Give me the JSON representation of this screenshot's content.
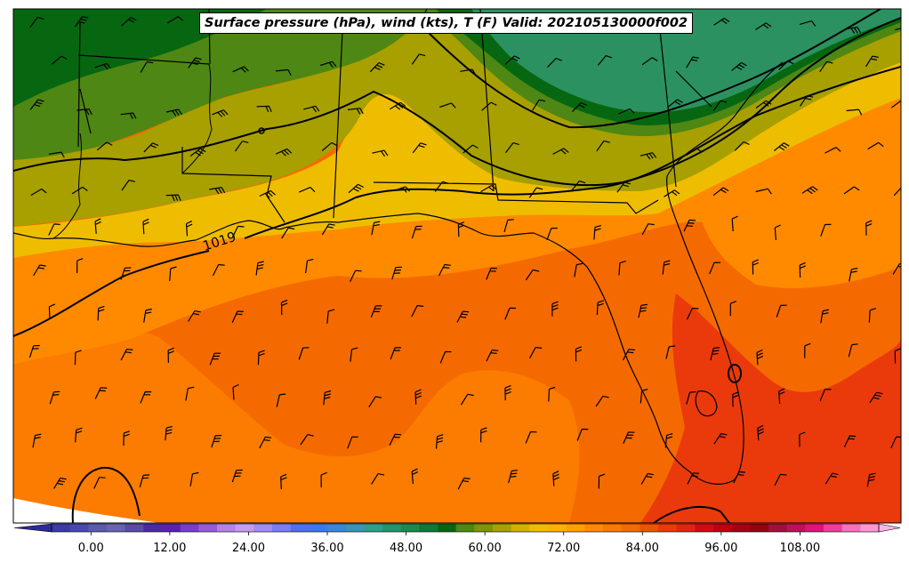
{
  "map": {
    "title": "Surface pressure (hPa), wind (kts), T (F) Valid: 202105130000f002",
    "isobar_label": "1019",
    "colorbar": {
      "ticks": [
        "0.00",
        "12.00",
        "24.00",
        "36.00",
        "48.00",
        "60.00",
        "72.00",
        "84.00",
        "96.00",
        "108.00"
      ],
      "min": -6,
      "max": 120,
      "step": 3
    },
    "colors": {
      "ocean_far": "#f56a00",
      "ocean_mid": "#ff8a00",
      "ocean_hot": "#ea3a0c",
      "coast_orange": "#ffa500",
      "gold": "#efbd00",
      "olive": "#a7a000",
      "green": "#4e8713",
      "dark_green": "#076711",
      "teal": "#2b9160"
    }
  }
}
